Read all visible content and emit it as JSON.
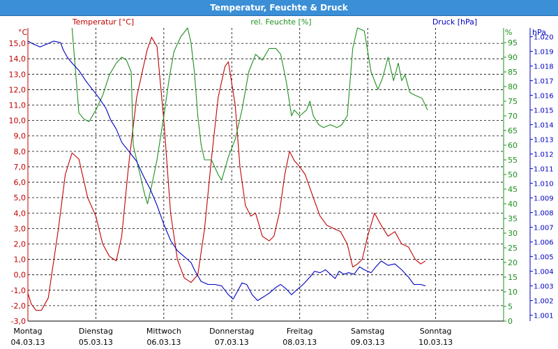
{
  "title": "Temperatur, Feuchte & Druck",
  "colors": {
    "temperature": "#c00000",
    "humidity": "#1f8f1f",
    "pressure": "#0000c0",
    "grid": "#000000"
  },
  "chart_data": {
    "type": "line",
    "title": "Temperatur, Feuchte & Druck",
    "axes": {
      "left": {
        "unit": "°C",
        "label": "Temperatur [°C]",
        "ticks": [
          "-3,0",
          "-2,0",
          "-1,0",
          "0,0",
          "1,0",
          "2,0",
          "3,0",
          "4,0",
          "5,0",
          "6,0",
          "7,0",
          "8,0",
          "9,0",
          "10,0",
          "11,0",
          "12,0",
          "13,0",
          "14,0",
          "15,0"
        ],
        "range": [
          -3,
          16
        ]
      },
      "right1": {
        "unit": "%",
        "label": "rel. Feuchte [%]",
        "ticks": [
          "0",
          "5",
          "10",
          "15",
          "20",
          "25",
          "30",
          "35",
          "40",
          "45",
          "50",
          "55",
          "60",
          "65",
          "70",
          "75",
          "80",
          "85",
          "90",
          "95"
        ],
        "range": [
          0,
          100
        ]
      },
      "right2": {
        "unit": "hPa",
        "label": "Druck [hPa]",
        "ticks": [
          "1.001",
          "1.002",
          "1.003",
          "1.004",
          "1.005",
          "1.006",
          "1.007",
          "1.008",
          "1.009",
          "1.010",
          "1.011",
          "1.012",
          "1.013",
          "1.014",
          "1.015",
          "1.016",
          "1.017",
          "1.018",
          "1.019",
          "1.020"
        ],
        "range": [
          1.0006,
          1.0206
        ]
      }
    },
    "x_labels": [
      {
        "day": "Montag",
        "date": "04.03.13"
      },
      {
        "day": "Dienstag",
        "date": "05.03.13"
      },
      {
        "day": "Mittwoch",
        "date": "06.03.13"
      },
      {
        "day": "Donnerstag",
        "date": "07.03.13"
      },
      {
        "day": "Freitag",
        "date": "08.03.13"
      },
      {
        "day": "Samstag",
        "date": "09.03.13"
      },
      {
        "day": "Sonntag",
        "date": "10.03.13"
      }
    ],
    "x_range_days": [
      0,
      7
    ],
    "grid": true,
    "series": [
      {
        "name": "Temperatur [°C]",
        "axis": "left",
        "color": "#c00000",
        "points": [
          [
            0,
            -1.2
          ],
          [
            0.05,
            -1.9
          ],
          [
            0.12,
            -2.3
          ],
          [
            0.2,
            -2.3
          ],
          [
            0.3,
            -1.5
          ],
          [
            0.45,
            3.0
          ],
          [
            0.55,
            6.5
          ],
          [
            0.65,
            7.9
          ],
          [
            0.75,
            7.5
          ],
          [
            0.88,
            5.0
          ],
          [
            1.0,
            3.8
          ],
          [
            1.1,
            2.0
          ],
          [
            1.2,
            1.2
          ],
          [
            1.3,
            0.9
          ],
          [
            1.38,
            2.5
          ],
          [
            1.48,
            7.0
          ],
          [
            1.6,
            11.5
          ],
          [
            1.75,
            14.5
          ],
          [
            1.82,
            15.4
          ],
          [
            1.9,
            14.8
          ],
          [
            2.0,
            10.0
          ],
          [
            2.1,
            4.0
          ],
          [
            2.2,
            1.0
          ],
          [
            2.3,
            -0.2
          ],
          [
            2.4,
            -0.5
          ],
          [
            2.5,
            0.0
          ],
          [
            2.6,
            3.0
          ],
          [
            2.7,
            7.5
          ],
          [
            2.8,
            11.5
          ],
          [
            2.9,
            13.5
          ],
          [
            2.95,
            13.8
          ],
          [
            3.05,
            11.0
          ],
          [
            3.12,
            7.0
          ],
          [
            3.2,
            4.5
          ],
          [
            3.28,
            3.8
          ],
          [
            3.35,
            4.0
          ],
          [
            3.45,
            2.5
          ],
          [
            3.55,
            2.2
          ],
          [
            3.62,
            2.5
          ],
          [
            3.7,
            4.0
          ],
          [
            3.78,
            6.5
          ],
          [
            3.85,
            8.0
          ],
          [
            3.92,
            7.4
          ],
          [
            4.0,
            7.0
          ],
          [
            4.08,
            6.5
          ],
          [
            4.2,
            5.0
          ],
          [
            4.3,
            3.8
          ],
          [
            4.4,
            3.2
          ],
          [
            4.5,
            3.0
          ],
          [
            4.6,
            2.8
          ],
          [
            4.7,
            2.0
          ],
          [
            4.78,
            0.5
          ],
          [
            4.85,
            0.7
          ],
          [
            4.92,
            1.0
          ],
          [
            5.0,
            2.5
          ],
          [
            5.1,
            4.0
          ],
          [
            5.2,
            3.2
          ],
          [
            5.3,
            2.5
          ],
          [
            5.4,
            2.8
          ],
          [
            5.5,
            2.0
          ],
          [
            5.6,
            1.8
          ],
          [
            5.7,
            1.0
          ],
          [
            5.78,
            0.7
          ],
          [
            5.85,
            0.9
          ]
        ]
      },
      {
        "name": "rel. Feuchte [%]",
        "axis": "right1",
        "color": "#1f8f1f",
        "points": [
          [
            0.65,
            100
          ],
          [
            0.75,
            71
          ],
          [
            0.82,
            69
          ],
          [
            0.9,
            68
          ],
          [
            1.0,
            72
          ],
          [
            1.1,
            77
          ],
          [
            1.2,
            84
          ],
          [
            1.3,
            88
          ],
          [
            1.38,
            90
          ],
          [
            1.45,
            89
          ],
          [
            1.52,
            85
          ],
          [
            1.55,
            60
          ],
          [
            1.6,
            55
          ],
          [
            1.68,
            47
          ],
          [
            1.72,
            43
          ],
          [
            1.76,
            40
          ],
          [
            1.82,
            46
          ],
          [
            1.9,
            55
          ],
          [
            2.0,
            70
          ],
          [
            2.08,
            83
          ],
          [
            2.15,
            92
          ],
          [
            2.25,
            97
          ],
          [
            2.35,
            100
          ],
          [
            2.4,
            95
          ],
          [
            2.45,
            85
          ],
          [
            2.5,
            70
          ],
          [
            2.55,
            60
          ],
          [
            2.6,
            55
          ],
          [
            2.7,
            55
          ],
          [
            2.8,
            50
          ],
          [
            2.85,
            48
          ],
          [
            2.95,
            56
          ],
          [
            3.05,
            62
          ],
          [
            3.15,
            72
          ],
          [
            3.25,
            85
          ],
          [
            3.35,
            91
          ],
          [
            3.45,
            89
          ],
          [
            3.55,
            93
          ],
          [
            3.65,
            93
          ],
          [
            3.72,
            91
          ],
          [
            3.8,
            82
          ],
          [
            3.88,
            70
          ],
          [
            3.92,
            72
          ],
          [
            4.0,
            70
          ],
          [
            4.1,
            72
          ],
          [
            4.15,
            75
          ],
          [
            4.2,
            70
          ],
          [
            4.28,
            67
          ],
          [
            4.35,
            66
          ],
          [
            4.45,
            67
          ],
          [
            4.55,
            66
          ],
          [
            4.62,
            67
          ],
          [
            4.7,
            70
          ],
          [
            4.78,
            93
          ],
          [
            4.85,
            100
          ],
          [
            4.95,
            99
          ],
          [
            5.05,
            85
          ],
          [
            5.15,
            79
          ],
          [
            5.22,
            83
          ],
          [
            5.3,
            90
          ],
          [
            5.38,
            82
          ],
          [
            5.45,
            88
          ],
          [
            5.5,
            82
          ],
          [
            5.55,
            84
          ],
          [
            5.62,
            78
          ],
          [
            5.7,
            77
          ],
          [
            5.8,
            76
          ],
          [
            5.88,
            72
          ]
        ]
      },
      {
        "name": "Druck [hPa]",
        "axis": "right2",
        "color": "#0000c0",
        "points": [
          [
            0,
            1.0197
          ],
          [
            0.08,
            1.0195
          ],
          [
            0.18,
            1.0193
          ],
          [
            0.28,
            1.0195
          ],
          [
            0.38,
            1.0197
          ],
          [
            0.48,
            1.0196
          ],
          [
            0.52,
            1.0191
          ],
          [
            0.58,
            1.0186
          ],
          [
            0.65,
            1.0182
          ],
          [
            0.75,
            1.0177
          ],
          [
            0.85,
            1.017
          ],
          [
            0.95,
            1.0164
          ],
          [
            1.05,
            1.0158
          ],
          [
            1.15,
            1.0151
          ],
          [
            1.22,
            1.0143
          ],
          [
            1.3,
            1.0137
          ],
          [
            1.38,
            1.0128
          ],
          [
            1.5,
            1.0121
          ],
          [
            1.6,
            1.0115
          ],
          [
            1.7,
            1.0105
          ],
          [
            1.8,
            1.0096
          ],
          [
            1.9,
            1.0085
          ],
          [
            2.0,
            1.0072
          ],
          [
            2.1,
            1.0061
          ],
          [
            2.2,
            1.0054
          ],
          [
            2.3,
            1.005
          ],
          [
            2.4,
            1.0046
          ],
          [
            2.45,
            1.0041
          ],
          [
            2.55,
            1.0033
          ],
          [
            2.65,
            1.0031
          ],
          [
            2.75,
            1.0031
          ],
          [
            2.85,
            1.003
          ],
          [
            2.95,
            1.0024
          ],
          [
            3.02,
            1.0021
          ],
          [
            3.08,
            1.0026
          ],
          [
            3.15,
            1.0032
          ],
          [
            3.22,
            1.0031
          ],
          [
            3.3,
            1.0024
          ],
          [
            3.38,
            1.002
          ],
          [
            3.45,
            1.0022
          ],
          [
            3.55,
            1.0025
          ],
          [
            3.65,
            1.0029
          ],
          [
            3.72,
            1.0031
          ],
          [
            3.8,
            1.0028
          ],
          [
            3.88,
            1.0024
          ],
          [
            3.95,
            1.0027
          ],
          [
            4.05,
            1.0031
          ],
          [
            4.15,
            1.0036
          ],
          [
            4.22,
            1.004
          ],
          [
            4.3,
            1.0039
          ],
          [
            4.38,
            1.0041
          ],
          [
            4.45,
            1.0038
          ],
          [
            4.52,
            1.0035
          ],
          [
            4.58,
            1.004
          ],
          [
            4.65,
            1.0038
          ],
          [
            4.72,
            1.0039
          ],
          [
            4.8,
            1.0038
          ],
          [
            4.88,
            1.0043
          ],
          [
            4.95,
            1.0041
          ],
          [
            5.05,
            1.0039
          ],
          [
            5.12,
            1.0043
          ],
          [
            5.2,
            1.0047
          ],
          [
            5.3,
            1.0044
          ],
          [
            5.4,
            1.0045
          ],
          [
            5.5,
            1.0041
          ],
          [
            5.6,
            1.0036
          ],
          [
            5.68,
            1.0031
          ],
          [
            5.78,
            1.0031
          ],
          [
            5.85,
            1.003
          ]
        ]
      }
    ]
  }
}
